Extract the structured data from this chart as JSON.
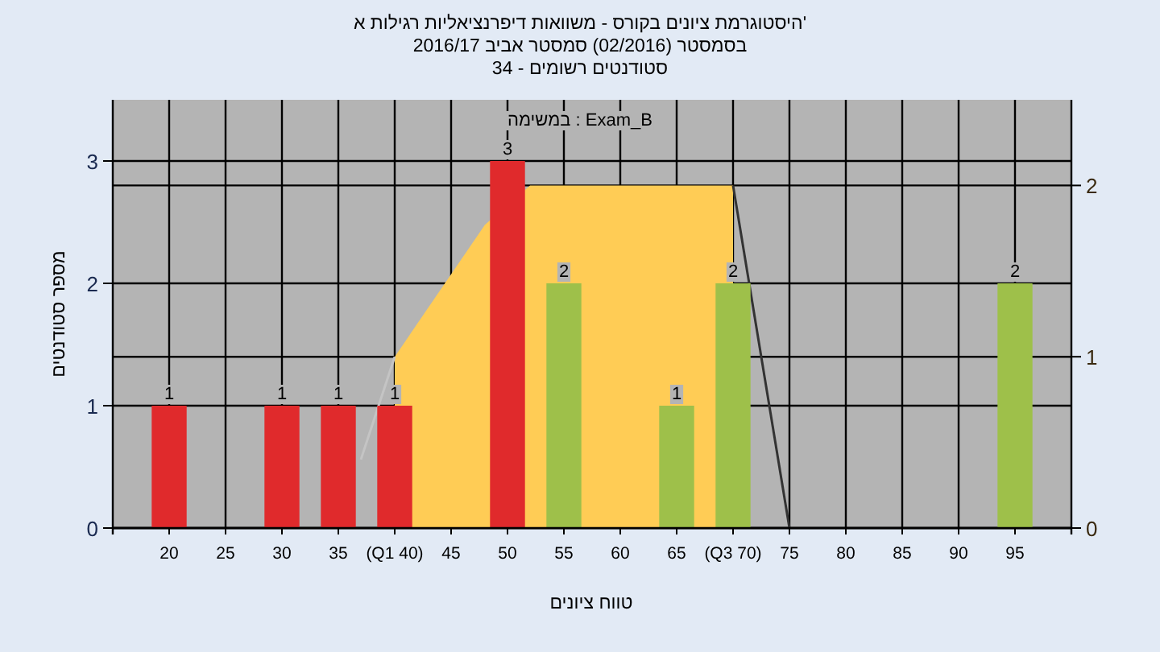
{
  "chart_data": {
    "type": "bar",
    "title": "היסטוגרמת ציונים בקורס - משוואות דיפרנציאליות רגילות א'",
    "subtitle": "בסמסטר (02/2016) סמסטר אביב 2016/17",
    "annotations": [
      "סטודנטים רשומים - 34",
      "במשימה : Exam_B"
    ],
    "xlabel": "טווח ציונים",
    "ylabel": "מספר סטודנטים",
    "series": [
      {
        "x": [
          20,
          25,
          30,
          35,
          40,
          45,
          50,
          55,
          60,
          65,
          70,
          75,
          80,
          85,
          90,
          95
        ],
        "values": [
          1,
          0,
          1,
          1,
          1,
          0,
          3,
          2,
          0,
          1,
          2,
          0,
          0,
          0,
          0,
          2
        ],
        "colors": [
          "#e02a2c",
          "#e02a2c",
          "#e02a2c",
          "#e02a2c",
          "#e02a2c",
          "#e02a2c",
          "#e02a2c",
          "#9ec04a",
          "#9ec04a",
          "#9ec04a",
          "#9ec04a",
          "#9ec04a",
          "#9ec04a",
          "#9ec04a",
          "#9ec04a",
          "#9ec04a"
        ],
        "value_labels": [
          "1",
          null,
          "1",
          "1",
          "1",
          null,
          "3",
          "2",
          null,
          "1",
          "2",
          null,
          null,
          null,
          null,
          "2"
        ]
      },
      {
        "type": "area",
        "axis": "y2",
        "x": [
          40,
          40,
          48,
          52,
          70,
          70
        ],
        "values": [
          0,
          1,
          1.77,
          2,
          2,
          0
        ],
        "color": "#ffcc55"
      },
      {
        "type": "line",
        "axis": "y2",
        "x": [
          37,
          40
        ],
        "values": [
          0.4,
          1
        ],
        "color": "#c4c4c4"
      },
      {
        "type": "line",
        "axis": "y2",
        "x": [
          70,
          75
        ],
        "values": [
          2,
          0
        ],
        "color": "#333333"
      }
    ],
    "xlim": [
      15,
      100
    ],
    "xticks": [
      20,
      25,
      30,
      35,
      {
        "value": 40,
        "label": "(Q1 40)"
      },
      45,
      50,
      55,
      60,
      65,
      {
        "value": 70,
        "label": "(Q3 70)"
      },
      75,
      80,
      85,
      90,
      95
    ],
    "ylim": [
      0,
      3.5
    ],
    "yticks": [
      0,
      1,
      2,
      3
    ],
    "y2lim": [
      0,
      2.5
    ],
    "y2ticks": [
      0,
      1,
      2
    ],
    "grid": true
  }
}
